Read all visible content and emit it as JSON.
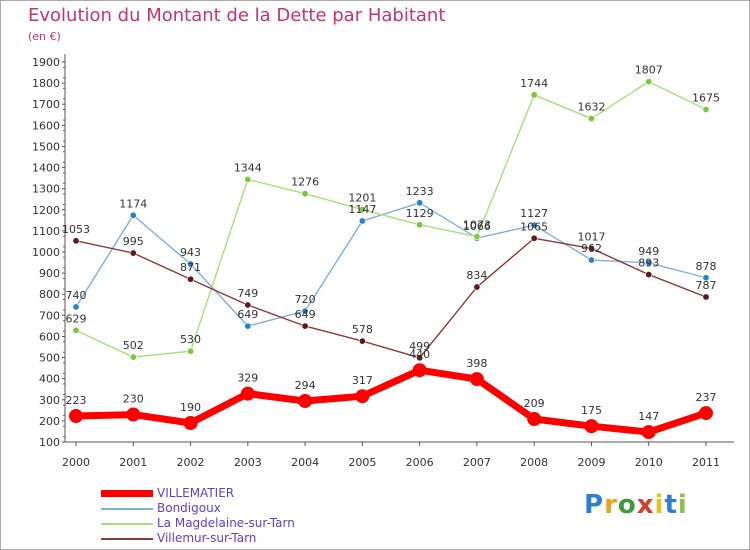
{
  "title": "Evolution du Montant de la Dette par Habitant",
  "subtitle": "(en €)",
  "logo": {
    "text": "Proxiti",
    "letter_colors": [
      "#2f7fd0",
      "#e8a21e",
      "#3c9a3c",
      "#d43f2a",
      "#e8c21e",
      "#2f7fd0",
      "#8bc34a"
    ]
  },
  "chart_data": {
    "type": "line",
    "title": "Evolution du Montant de la Dette par Habitant",
    "subtitle": "(en €)",
    "xlabel": "",
    "ylabel": "",
    "x": [
      "2000",
      "2001",
      "2002",
      "2003",
      "2004",
      "2005",
      "2006",
      "2007",
      "2008",
      "2009",
      "2010",
      "2011"
    ],
    "ylim": [
      100,
      1900
    ],
    "yticks": [
      100,
      200,
      300,
      400,
      500,
      600,
      700,
      800,
      900,
      1000,
      1100,
      1200,
      1300,
      1400,
      1500,
      1600,
      1700,
      1800,
      1900
    ],
    "grid": false,
    "legend_position": "bottom-left",
    "series": [
      {
        "name": "VILLEMATIER",
        "color": "#ff0000",
        "point_color": "#ff0000",
        "bold": true,
        "values": [
          223,
          230,
          190,
          329,
          294,
          317,
          440,
          398,
          209,
          175,
          147,
          237
        ]
      },
      {
        "name": "Bondigoux",
        "color": "#7fb0d8",
        "point_color": "#2f80c8",
        "bold": false,
        "values": [
          740,
          1174,
          943,
          649,
          720,
          1147,
          1233,
          1066,
          1127,
          962,
          949,
          878
        ]
      },
      {
        "name": "La Magdelaine-sur-Tarn",
        "color": "#a7e07a",
        "point_color": "#7cc83a",
        "bold": false,
        "values": [
          629,
          502,
          530,
          1344,
          1276,
          1201,
          1129,
          1073,
          1744,
          1632,
          1807,
          1675
        ]
      },
      {
        "name": "Villemur-sur-Tarn",
        "color": "#8a3a3a",
        "point_color": "#5e1a1a",
        "bold": false,
        "values": [
          1053,
          995,
          871,
          749,
          649,
          578,
          499,
          834,
          1065,
          1017,
          893,
          787
        ]
      }
    ]
  }
}
